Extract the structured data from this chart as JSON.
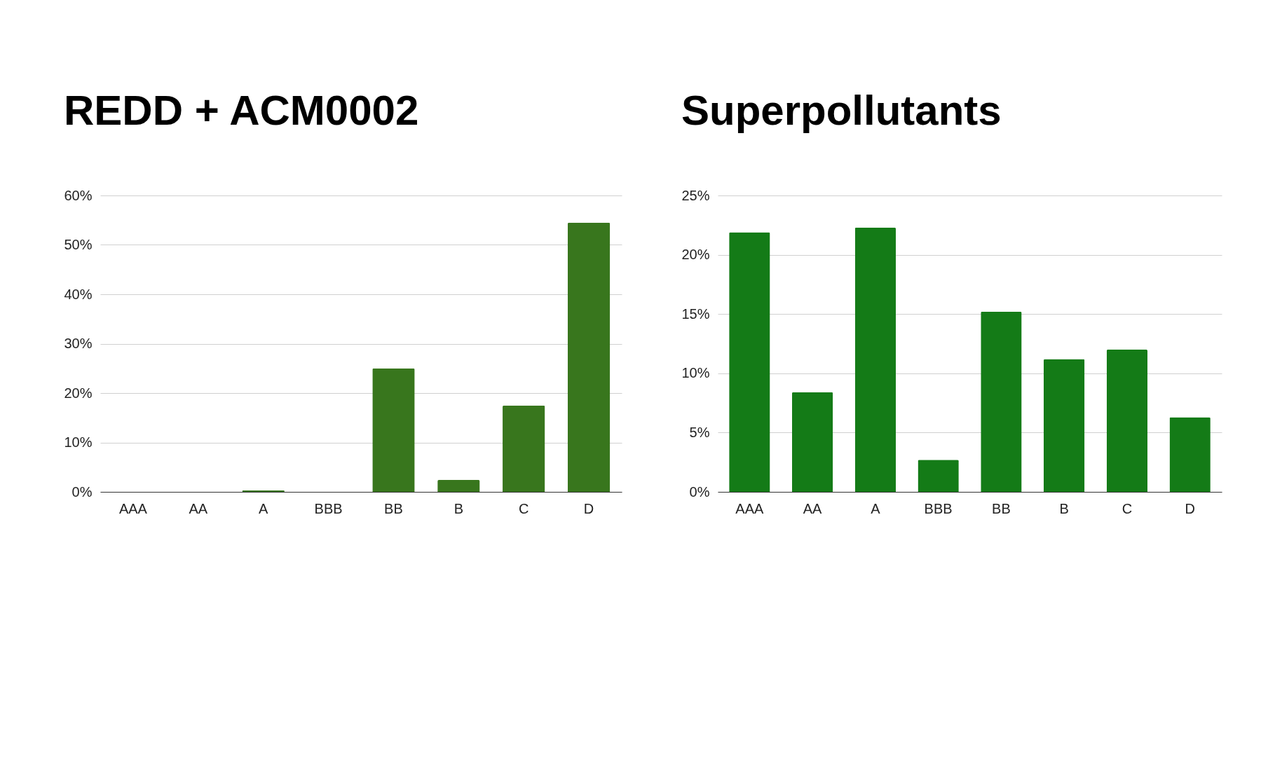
{
  "chart_data": [
    {
      "type": "bar",
      "title": "REDD + ACM0002",
      "categories": [
        "AAA",
        "AA",
        "A",
        "BBB",
        "BB",
        "B",
        "C",
        "D"
      ],
      "values": [
        0,
        0,
        0.3,
        0,
        25,
        2.4,
        17.5,
        54.5
      ],
      "color": "#38761d",
      "ylim": [
        0,
        60
      ],
      "yticks": [
        {
          "value": 0,
          "label": "0%"
        },
        {
          "value": 10,
          "label": "10%"
        },
        {
          "value": 20,
          "label": "20%"
        },
        {
          "value": 30,
          "label": "30%"
        },
        {
          "value": 40,
          "label": "40%"
        },
        {
          "value": 50,
          "label": "50%"
        },
        {
          "value": 60,
          "label": "60%"
        }
      ],
      "grid": "y"
    },
    {
      "type": "bar",
      "title": "Superpollutants",
      "categories": [
        "AAA",
        "AA",
        "A",
        "BBB",
        "BB",
        "B",
        "C",
        "D"
      ],
      "values": [
        21.9,
        8.4,
        22.3,
        2.7,
        15.2,
        11.2,
        12.0,
        6.3
      ],
      "color": "#147b17",
      "ylim": [
        0,
        25
      ],
      "yticks": [
        {
          "value": 0,
          "label": "0%"
        },
        {
          "value": 5,
          "label": "5%"
        },
        {
          "value": 10,
          "label": "10%"
        },
        {
          "value": 15,
          "label": "15%"
        },
        {
          "value": 20,
          "label": "20%"
        },
        {
          "value": 25,
          "label": "25%"
        }
      ],
      "grid": "y"
    }
  ]
}
